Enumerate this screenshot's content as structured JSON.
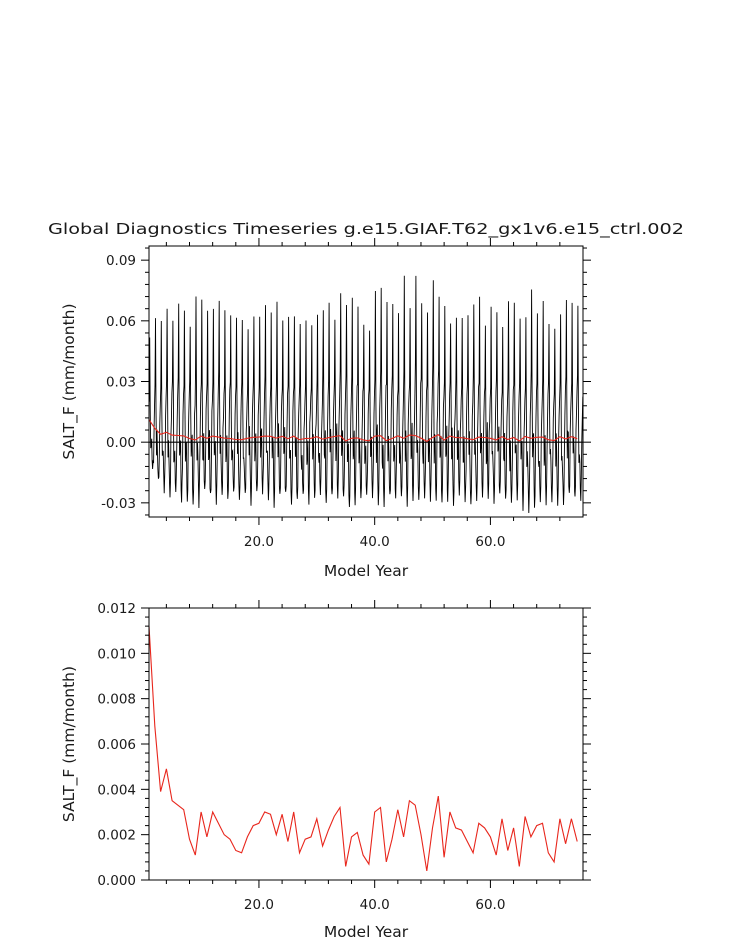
{
  "title": "Global Diagnostics Timeseries g.e15.GIAF.T62_gx1v6.e15_ctrl.002",
  "chart_data": [
    {
      "type": "line",
      "xlabel": "Model Year",
      "ylabel": "SALT_F (mm/month)",
      "xlim": [
        1,
        76
      ],
      "ylim": [
        -0.037,
        0.097
      ],
      "xticks": [
        20,
        40,
        60
      ],
      "xtick_labels": [
        "20.0",
        "40.0",
        "60.0"
      ],
      "yticks": [
        -0.03,
        0,
        0.03,
        0.06,
        0.09
      ],
      "ytick_labels": [
        "-0.03",
        "0.00",
        "0.03",
        "0.06",
        "0.09"
      ],
      "zero_line": true,
      "grid": false,
      "series": [
        {
          "color": "#000000",
          "resolution": "monthly",
          "annual_peaks": [
            0.05,
            0.061,
            0.061,
            0.068,
            0.062,
            0.069,
            0.068,
            0.06,
            0.072,
            0.07,
            0.066,
            0.064,
            0.072,
            0.066,
            0.062,
            0.059,
            0.061,
            0.058,
            0.064,
            0.061,
            0.067,
            0.066,
            0.07,
            0.061,
            0.064,
            0.06,
            0.058,
            0.061,
            0.059,
            0.063,
            0.068,
            0.066,
            0.061,
            0.074,
            0.07,
            0.071,
            0.065,
            0.061,
            0.057,
            0.075,
            0.074,
            0.069,
            0.068,
            0.061,
            0.08,
            0.067,
            0.082,
            0.069,
            0.066,
            0.078,
            0.072,
            0.069,
            0.061,
            0.063,
            0.06,
            0.062,
            0.071,
            0.069,
            0.057,
            0.064,
            0.066,
            0.058,
            0.07,
            0.068,
            0.064,
            0.061,
            0.075,
            0.061,
            0.068,
            0.06,
            0.057,
            0.065,
            0.068,
            0.069,
            0.07
          ],
          "annual_troughs": [
            -0.015,
            -0.02,
            -0.024,
            -0.026,
            -0.027,
            -0.028,
            -0.028,
            -0.029,
            -0.03,
            -0.026,
            -0.028,
            -0.029,
            -0.027,
            -0.028,
            -0.026,
            -0.029,
            -0.028,
            -0.029,
            -0.027,
            -0.027,
            -0.028,
            -0.03,
            -0.028,
            -0.027,
            -0.029,
            -0.03,
            -0.028,
            -0.031,
            -0.029,
            -0.027,
            -0.029,
            -0.028,
            -0.027,
            -0.029,
            -0.032,
            -0.03,
            -0.027,
            -0.028,
            -0.029,
            -0.029,
            -0.03,
            -0.028,
            -0.027,
            -0.028,
            -0.029,
            -0.028,
            -0.03,
            -0.027,
            -0.028,
            -0.029,
            -0.028,
            -0.029,
            -0.03,
            -0.028,
            -0.027,
            -0.029,
            -0.028,
            -0.027,
            -0.029,
            -0.028,
            -0.027,
            -0.03,
            -0.029,
            -0.028,
            -0.031,
            -0.034,
            -0.032,
            -0.029,
            -0.03,
            -0.028,
            -0.03,
            -0.031,
            -0.028,
            -0.029,
            -0.027
          ]
        },
        {
          "color": "#e8261c",
          "resolution": "annual",
          "x": [
            1,
            2,
            3,
            4,
            5,
            6,
            7,
            8,
            9,
            10,
            11,
            12,
            13,
            14,
            15,
            16,
            17,
            18,
            19,
            20,
            21,
            22,
            23,
            24,
            25,
            26,
            27,
            28,
            29,
            30,
            31,
            32,
            33,
            34,
            35,
            36,
            37,
            38,
            39,
            40,
            41,
            42,
            43,
            44,
            45,
            46,
            47,
            48,
            49,
            50,
            51,
            52,
            53,
            54,
            55,
            56,
            57,
            58,
            59,
            60,
            61,
            62,
            63,
            64,
            65,
            66,
            67,
            68,
            69,
            70,
            71,
            72,
            73,
            74,
            75
          ],
          "values": [
            0.0112,
            0.0068,
            0.0039,
            0.0049,
            0.0035,
            0.0033,
            0.0031,
            0.0018,
            0.0011,
            0.003,
            0.0019,
            0.003,
            0.0025,
            0.002,
            0.0018,
            0.0013,
            0.0012,
            0.0019,
            0.0024,
            0.0025,
            0.003,
            0.0029,
            0.002,
            0.0029,
            0.0017,
            0.003,
            0.0012,
            0.0018,
            0.0019,
            0.0027,
            0.0015,
            0.0022,
            0.0028,
            0.0032,
            0.0006,
            0.0019,
            0.0021,
            0.0011,
            0.0007,
            0.003,
            0.0032,
            0.0008,
            0.0018,
            0.0031,
            0.0019,
            0.0035,
            0.0033,
            0.002,
            0.0004,
            0.0023,
            0.0037,
            0.001,
            0.003,
            0.0023,
            0.0022,
            0.0017,
            0.0012,
            0.0025,
            0.0023,
            0.0019,
            0.0011,
            0.0027,
            0.0013,
            0.0023,
            0.0006,
            0.0028,
            0.0019,
            0.0024,
            0.0025,
            0.0012,
            0.0008,
            0.0027,
            0.0016,
            0.0027,
            0.0017
          ]
        }
      ]
    },
    {
      "type": "line",
      "xlabel": "Model Year",
      "ylabel": "SALT_F (mm/month)",
      "xlim": [
        1,
        76
      ],
      "ylim": [
        0,
        0.012
      ],
      "xticks": [
        20,
        40,
        60
      ],
      "xtick_labels": [
        "20.0",
        "40.0",
        "60.0"
      ],
      "yticks": [
        0,
        0.002,
        0.004,
        0.006,
        0.008,
        0.01,
        0.012
      ],
      "ytick_labels": [
        "0.000",
        "0.002",
        "0.004",
        "0.006",
        "0.008",
        "0.010",
        "0.012"
      ],
      "grid": false,
      "series": [
        {
          "color": "#e8261c",
          "resolution": "annual",
          "x": [
            1,
            2,
            3,
            4,
            5,
            6,
            7,
            8,
            9,
            10,
            11,
            12,
            13,
            14,
            15,
            16,
            17,
            18,
            19,
            20,
            21,
            22,
            23,
            24,
            25,
            26,
            27,
            28,
            29,
            30,
            31,
            32,
            33,
            34,
            35,
            36,
            37,
            38,
            39,
            40,
            41,
            42,
            43,
            44,
            45,
            46,
            47,
            48,
            49,
            50,
            51,
            52,
            53,
            54,
            55,
            56,
            57,
            58,
            59,
            60,
            61,
            62,
            63,
            64,
            65,
            66,
            67,
            68,
            69,
            70,
            71,
            72,
            73,
            74,
            75
          ],
          "values": [
            0.0112,
            0.0068,
            0.0039,
            0.0049,
            0.0035,
            0.0033,
            0.0031,
            0.0018,
            0.0011,
            0.003,
            0.0019,
            0.003,
            0.0025,
            0.002,
            0.0018,
            0.0013,
            0.0012,
            0.0019,
            0.0024,
            0.0025,
            0.003,
            0.0029,
            0.002,
            0.0029,
            0.0017,
            0.003,
            0.0012,
            0.0018,
            0.0019,
            0.0027,
            0.0015,
            0.0022,
            0.0028,
            0.0032,
            0.0006,
            0.0019,
            0.0021,
            0.0011,
            0.0007,
            0.003,
            0.0032,
            0.0008,
            0.0018,
            0.0031,
            0.0019,
            0.0035,
            0.0033,
            0.002,
            0.0004,
            0.0023,
            0.0037,
            0.001,
            0.003,
            0.0023,
            0.0022,
            0.0017,
            0.0012,
            0.0025,
            0.0023,
            0.0019,
            0.0011,
            0.0027,
            0.0013,
            0.0023,
            0.0006,
            0.0028,
            0.0019,
            0.0024,
            0.0025,
            0.0012,
            0.0008,
            0.0027,
            0.0016,
            0.0027,
            0.0017
          ]
        }
      ]
    }
  ]
}
